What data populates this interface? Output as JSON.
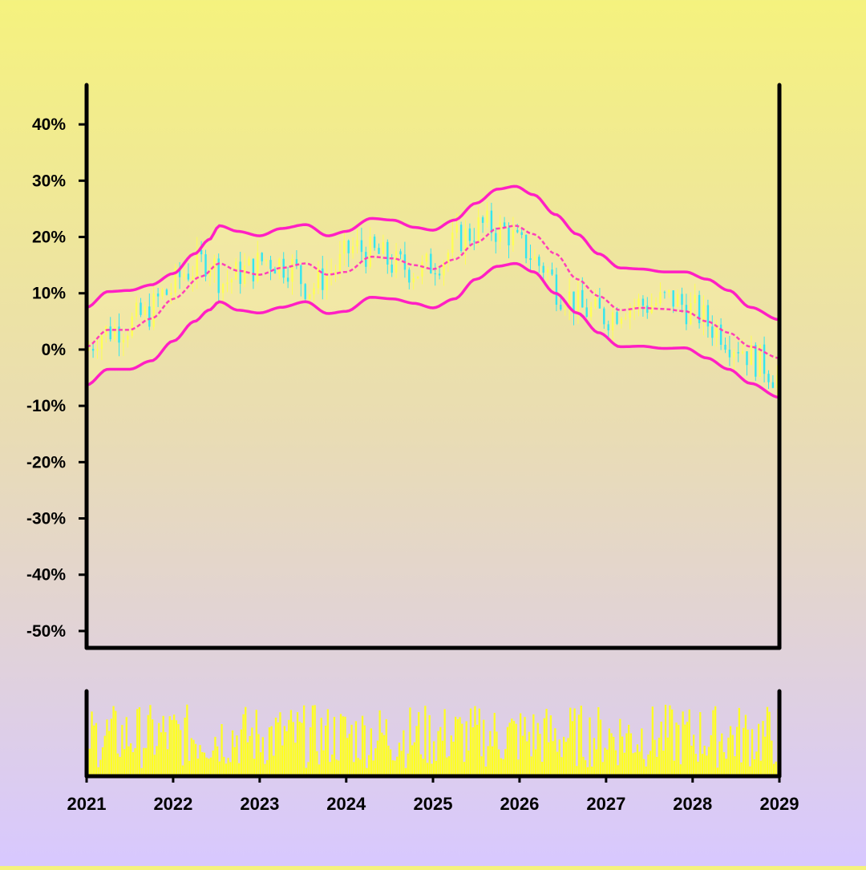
{
  "chart_data": {
    "type": "candlestick",
    "title": "",
    "xlabel": "",
    "ylabel": "",
    "x_range": [
      "2021-01-01",
      "2029-01-01"
    ],
    "x_ticks": [
      "2021",
      "2022",
      "2023",
      "2024",
      "2025",
      "2026",
      "2027",
      "2028",
      "2029"
    ],
    "y_ticks": [
      "40%",
      "30%",
      "20%",
      "10%",
      "0%",
      "-10%",
      "-20%",
      "-30%",
      "-40%",
      "-50%"
    ],
    "ylim": [
      -53,
      47
    ],
    "y_unit": "%",
    "grid": false,
    "legend": "none",
    "colors": {
      "candle_up": "#ffff55",
      "candle_down": "#33e6f0",
      "band": "#ff1fc4",
      "middle": "#ff3fb8",
      "band_fill": "#f3e9a6",
      "volume": "#ffff22",
      "axis": "#000000"
    },
    "price_series": {
      "name": "",
      "points": [
        [
          "2021-01-01",
          0
        ],
        [
          "2021-03-01",
          3
        ],
        [
          "2021-06-01",
          4
        ],
        [
          "2021-09-01",
          6
        ],
        [
          "2021-12-01",
          10
        ],
        [
          "2022-03-01",
          14
        ],
        [
          "2022-06-01",
          16
        ],
        [
          "2022-08-01",
          12
        ],
        [
          "2022-11-01",
          14
        ],
        [
          "2023-02-01",
          16
        ],
        [
          "2023-05-01",
          15
        ],
        [
          "2023-08-01",
          11
        ],
        [
          "2023-11-01",
          14
        ],
        [
          "2024-02-01",
          18
        ],
        [
          "2024-05-01",
          17
        ],
        [
          "2024-08-01",
          15
        ],
        [
          "2024-11-01",
          14
        ],
        [
          "2025-02-01",
          16
        ],
        [
          "2025-05-01",
          20
        ],
        [
          "2025-08-01",
          22
        ],
        [
          "2025-11-01",
          21
        ],
        [
          "2026-01-15",
          18
        ],
        [
          "2026-04-01",
          15
        ],
        [
          "2026-07-01",
          10
        ],
        [
          "2026-10-01",
          7
        ],
        [
          "2027-01-01",
          6
        ],
        [
          "2027-04-01",
          8
        ],
        [
          "2027-07-01",
          8
        ],
        [
          "2027-10-01",
          9
        ],
        [
          "2028-01-01",
          7
        ],
        [
          "2028-04-01",
          4
        ],
        [
          "2028-07-01",
          1
        ],
        [
          "2028-10-01",
          -2
        ],
        [
          "2029-01-01",
          -5
        ]
      ]
    },
    "bollinger_middle": [
      [
        "2021-01-01",
        0.5
      ],
      [
        "2021-04-01",
        3.5
      ],
      [
        "2021-07-01",
        3.5
      ],
      [
        "2021-10-01",
        5.5
      ],
      [
        "2022-01-01",
        9
      ],
      [
        "2022-05-01",
        13
      ],
      [
        "2022-07-15",
        15.3
      ],
      [
        "2022-10-01",
        14
      ],
      [
        "2023-01-01",
        13.3
      ],
      [
        "2023-04-01",
        14.5
      ],
      [
        "2023-07-15",
        15.3
      ],
      [
        "2023-10-15",
        13.3
      ],
      [
        "2024-01-01",
        13.8
      ],
      [
        "2024-04-15",
        16.5
      ],
      [
        "2024-07-15",
        16.2
      ],
      [
        "2024-10-15",
        15
      ],
      [
        "2025-01-01",
        14.3
      ],
      [
        "2025-04-01",
        16
      ],
      [
        "2025-07-01",
        19
      ],
      [
        "2025-10-01",
        21.5
      ],
      [
        "2025-12-15",
        22
      ],
      [
        "2026-03-01",
        20.5
      ],
      [
        "2026-06-01",
        17
      ],
      [
        "2026-09-01",
        12.5
      ],
      [
        "2026-12-01",
        9.5
      ],
      [
        "2027-03-01",
        7
      ],
      [
        "2027-06-01",
        7.4
      ],
      [
        "2027-09-01",
        7.2
      ],
      [
        "2027-12-01",
        6.8
      ],
      [
        "2028-03-01",
        5
      ],
      [
        "2028-06-01",
        3
      ],
      [
        "2028-09-01",
        0.5
      ],
      [
        "2029-01-01",
        -1.5
      ]
    ],
    "bollinger_upper": [
      [
        "2021-01-01",
        7.5
      ],
      [
        "2021-04-01",
        10.3
      ],
      [
        "2021-07-01",
        10.5
      ],
      [
        "2021-10-01",
        11.5
      ],
      [
        "2022-01-01",
        13.5
      ],
      [
        "2022-04-01",
        17
      ],
      [
        "2022-06-01",
        19.5
      ],
      [
        "2022-07-15",
        22
      ],
      [
        "2022-10-01",
        21
      ],
      [
        "2023-01-01",
        20.2
      ],
      [
        "2023-04-01",
        21.5
      ],
      [
        "2023-07-15",
        22.2
      ],
      [
        "2023-10-15",
        20.2
      ],
      [
        "2024-01-01",
        21
      ],
      [
        "2024-04-15",
        23.3
      ],
      [
        "2024-07-15",
        23
      ],
      [
        "2024-10-15",
        21.7
      ],
      [
        "2025-01-01",
        21.2
      ],
      [
        "2025-04-01",
        23
      ],
      [
        "2025-07-01",
        26
      ],
      [
        "2025-10-01",
        28.5
      ],
      [
        "2025-12-15",
        29
      ],
      [
        "2026-03-01",
        27.5
      ],
      [
        "2026-06-01",
        24
      ],
      [
        "2026-09-01",
        20.5
      ],
      [
        "2026-12-01",
        17
      ],
      [
        "2027-03-01",
        14.5
      ],
      [
        "2027-06-01",
        14.3
      ],
      [
        "2027-09-01",
        13.8
      ],
      [
        "2027-12-01",
        13.8
      ],
      [
        "2028-03-01",
        12.5
      ],
      [
        "2028-06-01",
        10.5
      ],
      [
        "2028-09-01",
        7.5
      ],
      [
        "2029-01-01",
        5.3
      ]
    ],
    "bollinger_lower": [
      [
        "2021-01-01",
        -6.3
      ],
      [
        "2021-04-01",
        -3.5
      ],
      [
        "2021-07-01",
        -3.5
      ],
      [
        "2021-10-01",
        -2
      ],
      [
        "2022-01-01",
        1.5
      ],
      [
        "2022-04-01",
        5
      ],
      [
        "2022-06-01",
        7
      ],
      [
        "2022-07-15",
        8.5
      ],
      [
        "2022-10-01",
        7
      ],
      [
        "2023-01-01",
        6.5
      ],
      [
        "2023-04-01",
        7.5
      ],
      [
        "2023-07-15",
        8.5
      ],
      [
        "2023-10-15",
        6.4
      ],
      [
        "2024-01-01",
        6.8
      ],
      [
        "2024-04-15",
        9.3
      ],
      [
        "2024-07-15",
        9
      ],
      [
        "2024-10-15",
        8.2
      ],
      [
        "2025-01-01",
        7.4
      ],
      [
        "2025-04-01",
        9
      ],
      [
        "2025-07-01",
        12.5
      ],
      [
        "2025-10-01",
        14.8
      ],
      [
        "2025-12-15",
        15.3
      ],
      [
        "2026-03-01",
        13.8
      ],
      [
        "2026-06-01",
        10
      ],
      [
        "2026-09-01",
        6.5
      ],
      [
        "2026-12-01",
        3
      ],
      [
        "2027-03-01",
        0.5
      ],
      [
        "2027-06-01",
        0.6
      ],
      [
        "2027-09-01",
        0.2
      ],
      [
        "2027-12-01",
        0.3
      ],
      [
        "2028-03-01",
        -1.5
      ],
      [
        "2028-06-01",
        -3.5
      ],
      [
        "2028-09-01",
        -6
      ],
      [
        "2029-01-01",
        -8.5
      ]
    ],
    "candles": {
      "count": 160,
      "range_pct": 4.5
    },
    "volume": {
      "count": 320,
      "min_fraction": 0.1,
      "max_fraction": 0.9
    }
  }
}
